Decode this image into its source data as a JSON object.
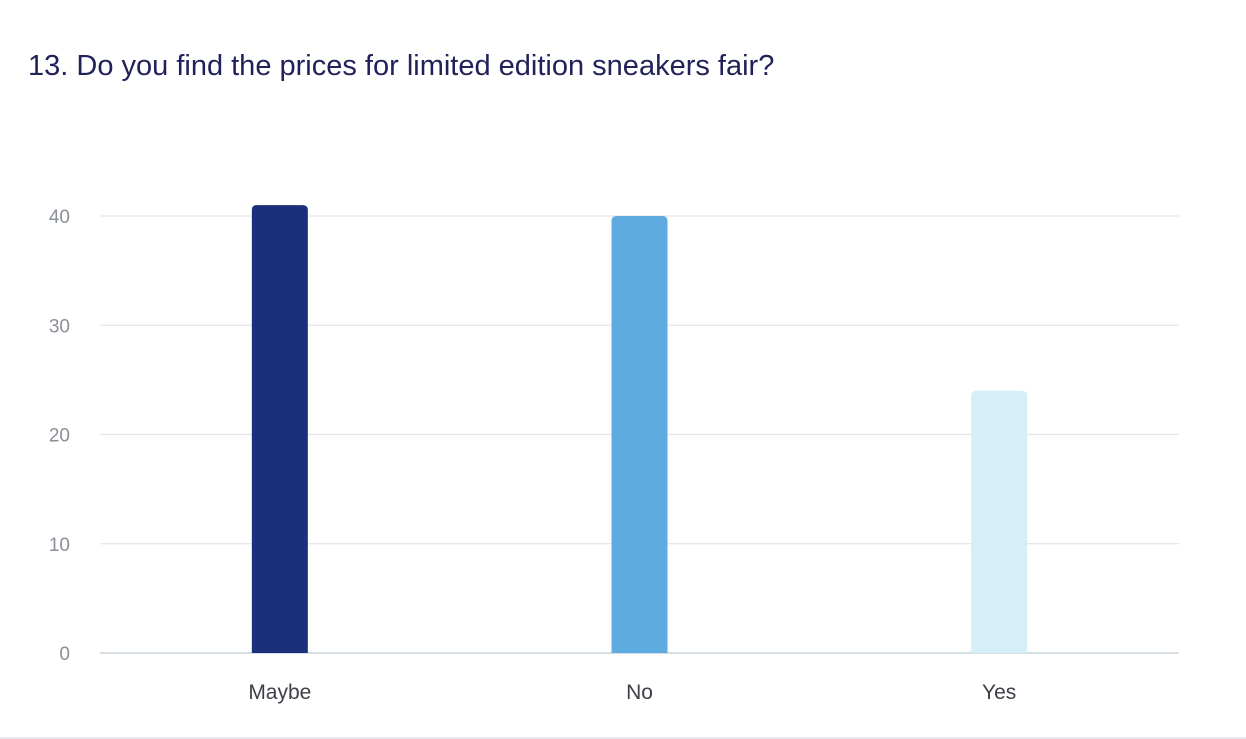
{
  "title": "13. Do you find the prices for limited edition sneakers fair?",
  "chart_data": {
    "type": "bar",
    "title": "13. Do you find the prices for limited edition sneakers fair?",
    "categories": [
      "Maybe",
      "No",
      "Yes"
    ],
    "values": [
      41,
      40,
      24
    ],
    "colors": [
      "#1b2f7a",
      "#5eabe1",
      "#d5eff8"
    ],
    "yticks": [
      0,
      10,
      20,
      30,
      40
    ],
    "ylim": [
      0,
      40
    ],
    "xlabel": "",
    "ylabel": "",
    "grid": true,
    "legend": "none"
  }
}
